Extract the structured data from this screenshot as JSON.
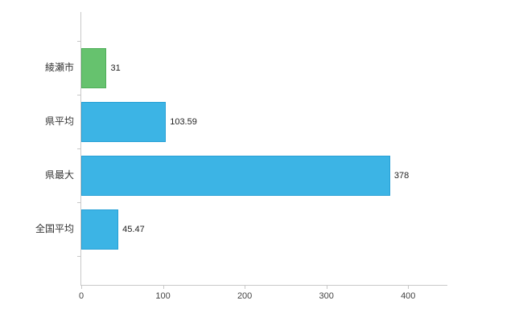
{
  "chart_data": {
    "type": "bar",
    "orientation": "horizontal",
    "title": "",
    "xlabel": "",
    "ylabel": "",
    "grid": false,
    "legend": false,
    "categories": [
      "綾瀬市",
      "県平均",
      "県最大",
      "全国平均"
    ],
    "values": [
      31,
      103.59,
      378,
      45.47
    ],
    "value_labels": [
      "31",
      "103.59",
      "378",
      "45.47"
    ],
    "bar_colors": [
      "#66c26e",
      "#3cb4e5",
      "#3cb4e5",
      "#3cb4e5"
    ],
    "bar_border_colors": [
      "#4fae59",
      "#27a0d6",
      "#27a0d6",
      "#27a0d6"
    ],
    "x_ticks": [
      0,
      100,
      200,
      300,
      400
    ],
    "xlim": [
      0,
      448
    ]
  },
  "colors": {
    "axis": "#c8c8c8",
    "value_text": "#222222",
    "category_text": "#333333",
    "tick_text": "#444444"
  }
}
